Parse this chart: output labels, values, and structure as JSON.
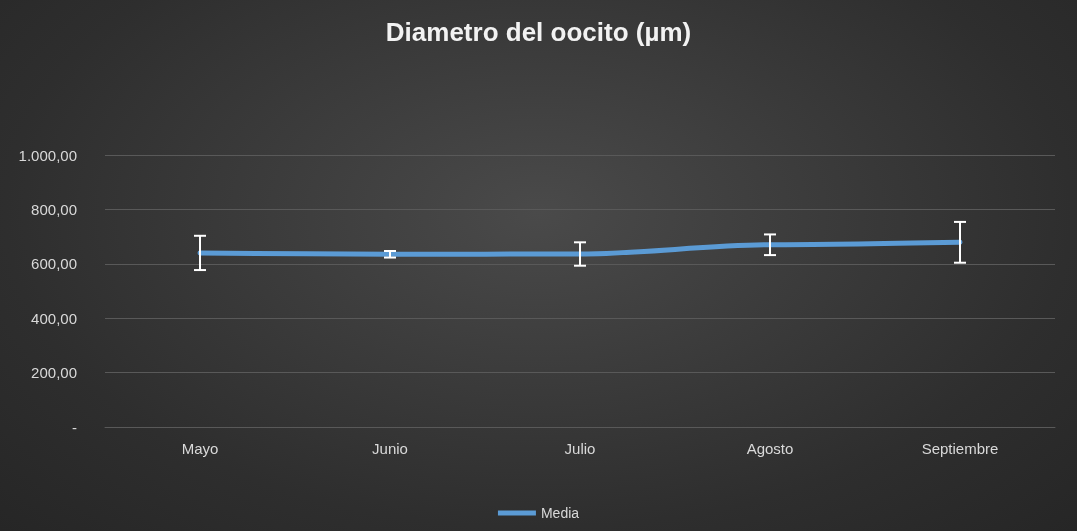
{
  "chart_data": {
    "type": "line",
    "title": "Diametro del oocito (µm)",
    "categories": [
      "Mayo",
      "Junio",
      "Julio",
      "Agosto",
      "Septiembre"
    ],
    "series": [
      {
        "name": "Media",
        "color": "#5b9bd5",
        "values": [
          640,
          635,
          636,
          670,
          679
        ],
        "errors": [
          63,
          12,
          43,
          38,
          75
        ]
      }
    ],
    "ylim": [
      0,
      1000
    ],
    "yticks": [
      {
        "value": 0,
        "label": "-"
      },
      {
        "value": 200,
        "label": "200,00"
      },
      {
        "value": 400,
        "label": "400,00"
      },
      {
        "value": 600,
        "label": "600,00"
      },
      {
        "value": 800,
        "label": "800,00"
      },
      {
        "value": 1000,
        "label": "1.000,00"
      }
    ],
    "grid": "y",
    "legend": "bottom",
    "marker": "none",
    "line_style": "solid"
  }
}
